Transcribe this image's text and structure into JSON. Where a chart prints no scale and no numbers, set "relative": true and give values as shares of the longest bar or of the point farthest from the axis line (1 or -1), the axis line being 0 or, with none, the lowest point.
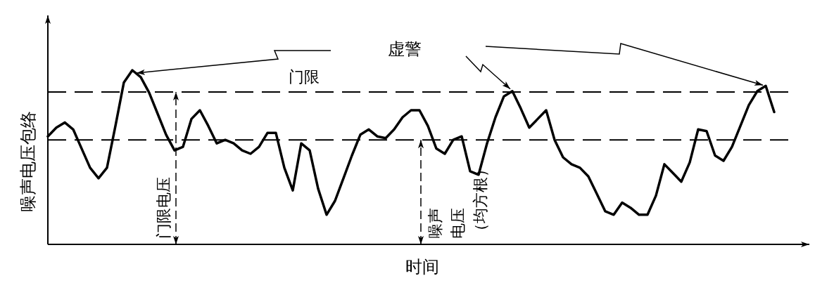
{
  "chart_data": {
    "type": "line",
    "relative": true,
    "color": "#000000",
    "xlabel": "时间",
    "ylabel": "噪声电压包络",
    "categories": [
      null,
      null,
      null,
      null,
      null,
      null,
      null,
      null,
      null,
      null,
      null,
      null,
      null,
      null,
      null,
      null,
      null,
      null,
      null,
      null,
      null,
      null,
      null,
      null,
      null,
      null,
      null,
      null,
      null,
      null,
      null,
      null,
      null,
      null,
      null,
      null,
      null,
      null,
      null,
      null,
      null,
      null,
      null,
      null,
      null,
      null,
      null,
      null,
      null,
      null,
      null,
      null,
      null,
      null,
      null,
      null,
      null,
      null,
      null,
      null,
      null,
      null,
      null,
      null,
      null,
      null,
      null,
      null,
      null,
      null,
      null,
      null,
      null,
      null,
      null,
      null,
      null,
      null,
      null,
      null,
      null,
      null,
      null,
      null,
      null,
      null,
      null
    ],
    "values": [
      0.62,
      0.67,
      0.7,
      0.66,
      0.55,
      0.44,
      0.38,
      0.44,
      0.68,
      0.93,
      1.0,
      0.96,
      0.87,
      0.75,
      0.63,
      0.54,
      0.56,
      0.72,
      0.77,
      0.68,
      0.58,
      0.6,
      0.58,
      0.54,
      0.52,
      0.56,
      0.64,
      0.64,
      0.44,
      0.31,
      0.58,
      0.54,
      0.32,
      0.17,
      0.25,
      0.38,
      0.51,
      0.63,
      0.66,
      0.62,
      0.61,
      0.66,
      0.73,
      0.77,
      0.77,
      0.68,
      0.55,
      0.52,
      0.6,
      0.62,
      0.42,
      0.4,
      0.58,
      0.73,
      0.85,
      0.88,
      0.78,
      0.67,
      0.72,
      0.77,
      0.6,
      0.5,
      0.46,
      0.44,
      0.39,
      0.29,
      0.19,
      0.17,
      0.24,
      0.21,
      0.17,
      0.17,
      0.28,
      0.46,
      0.41,
      0.36,
      0.47,
      0.66,
      0.65,
      0.51,
      0.48,
      0.56,
      0.68,
      0.8,
      0.88,
      0.91,
      0.76
    ],
    "ref_lines": [
      {
        "axis": "y",
        "value": 0.875,
        "label": "门限",
        "line_style": "dashed"
      },
      {
        "axis": "y",
        "value": 0.6,
        "line_style": "dashed"
      }
    ],
    "annotations": [
      "虚警",
      "门限电压",
      "噪声电压（均方根）"
    ]
  }
}
